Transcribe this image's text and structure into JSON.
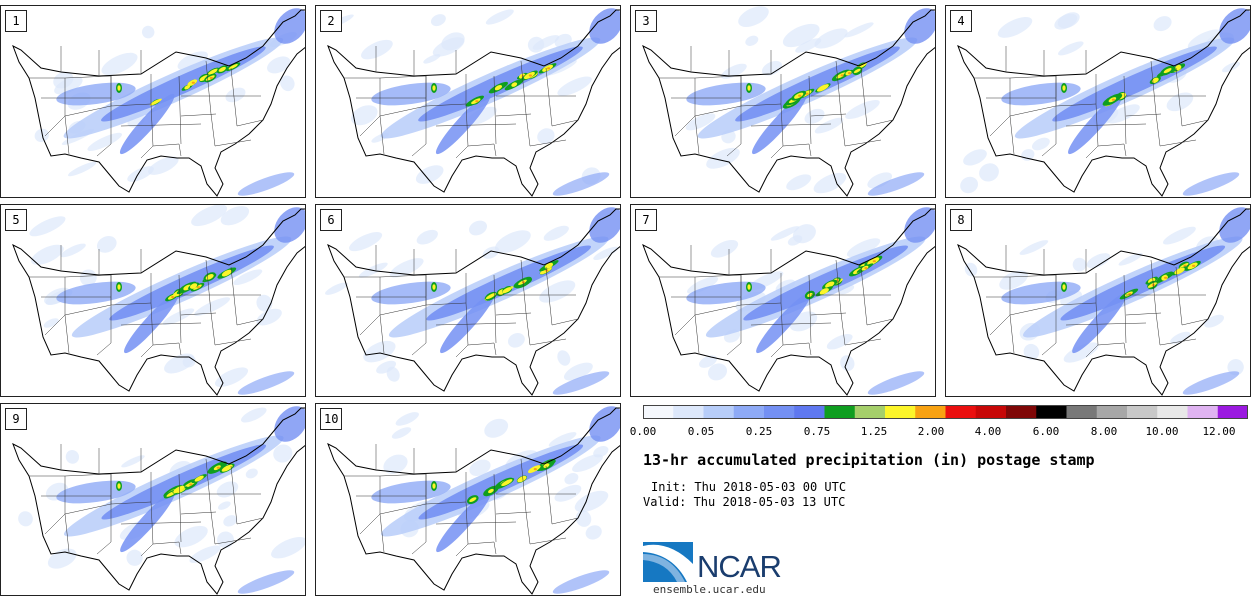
{
  "members": [
    {
      "label": "1"
    },
    {
      "label": "2"
    },
    {
      "label": "3"
    },
    {
      "label": "4"
    },
    {
      "label": "5"
    },
    {
      "label": "6"
    },
    {
      "label": "7"
    },
    {
      "label": "8"
    },
    {
      "label": "9"
    },
    {
      "label": "10"
    }
  ],
  "colorbar": {
    "colors": [
      "#f5f8fd",
      "#dde8fb",
      "#b7cdf9",
      "#8eaaf6",
      "#7490f3",
      "#5f78f0",
      "#0f9e20",
      "#a5cf6a",
      "#fcf52a",
      "#f8a212",
      "#ea0f0f",
      "#c70707",
      "#7f0707",
      "#000000",
      "#787878",
      "#a7a7a7",
      "#c8c8c8",
      "#e8e8e8",
      "#dfb3f1",
      "#9b1ae0"
    ],
    "tick_labels": [
      "0.00",
      "0.05",
      "0.25",
      "0.75",
      "1.25",
      "2.00",
      "4.00",
      "6.00",
      "8.00",
      "10.00",
      "12.00"
    ]
  },
  "title": "13-hr accumulated precipitation (in) postage stamp",
  "init": "Init: Thu 2018-05-03 00 UTC",
  "valid": "Valid: Thu 2018-05-03 13 UTC",
  "logo_text": "NCAR",
  "site": "ensemble.ucar.edu"
}
